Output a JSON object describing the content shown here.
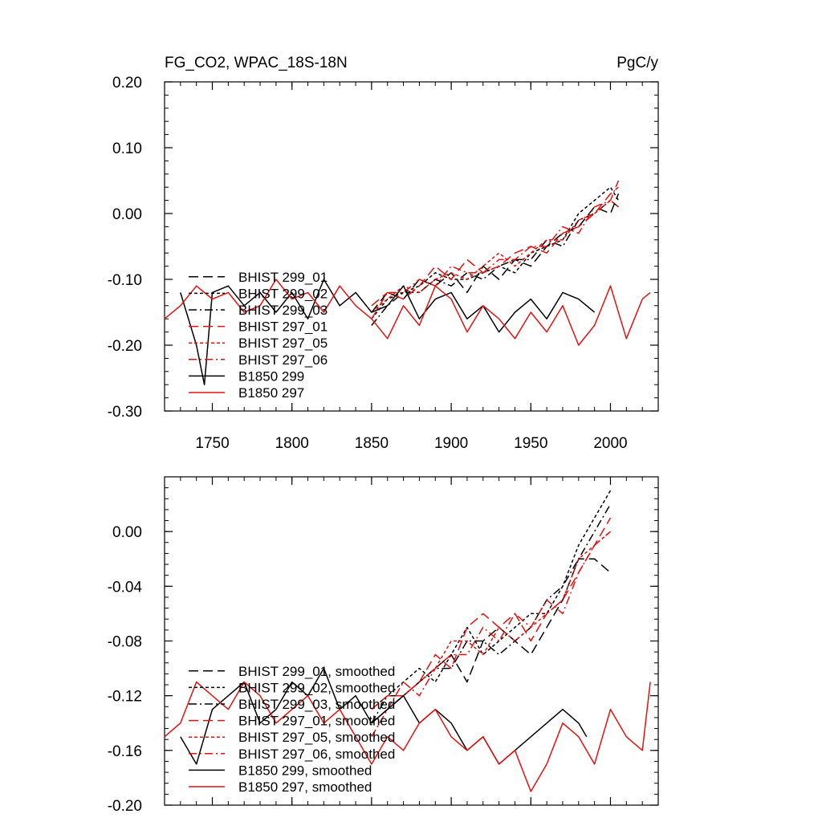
{
  "chart_data": [
    {
      "type": "line",
      "title": "FG_CO2, WPAC_18S-18N",
      "units": "PgC/y",
      "xlabel": "",
      "ylabel": "",
      "xlim": [
        1720,
        2030
      ],
      "ylim": [
        -0.3,
        0.2
      ],
      "xticks": [
        1750,
        1800,
        1850,
        1900,
        1950,
        2000
      ],
      "xtick_labels": [
        "1750",
        "1800",
        "1850",
        "1900",
        "1950",
        "2000"
      ],
      "yticks": [
        -0.3,
        -0.2,
        -0.1,
        0.0,
        0.1,
        0.2
      ],
      "ytick_labels": [
        "-0.30",
        "-0.20",
        "-0.10",
        "0.00",
        "0.10",
        "0.20"
      ],
      "grid": false,
      "legend_position": "bottom-left",
      "series": [
        {
          "name": "BHIST 299_01",
          "color": "#000000",
          "dash": "long-dash",
          "x": [
            1850,
            1860,
            1870,
            1880,
            1890,
            1900,
            1910,
            1920,
            1930,
            1940,
            1950,
            1960,
            1970,
            1980,
            1990,
            2000,
            2005
          ],
          "y": [
            -0.15,
            -0.12,
            -0.13,
            -0.1,
            -0.11,
            -0.09,
            -0.12,
            -0.08,
            -0.1,
            -0.07,
            -0.08,
            -0.05,
            -0.03,
            -0.02,
            0.01,
            0.0,
            0.03
          ]
        },
        {
          "name": "BHIST 299_02",
          "color": "#000000",
          "dash": "short-dash",
          "x": [
            1850,
            1860,
            1870,
            1880,
            1890,
            1900,
            1910,
            1920,
            1930,
            1940,
            1950,
            1960,
            1970,
            1980,
            1990,
            2000,
            2005
          ],
          "y": [
            -0.16,
            -0.13,
            -0.12,
            -0.11,
            -0.09,
            -0.1,
            -0.1,
            -0.09,
            -0.08,
            -0.09,
            -0.06,
            -0.05,
            -0.04,
            0.0,
            0.02,
            0.04,
            0.02
          ]
        },
        {
          "name": "BHIST 299_03",
          "color": "#000000",
          "dash": "dash-dot",
          "x": [
            1850,
            1860,
            1870,
            1880,
            1890,
            1900,
            1910,
            1920,
            1930,
            1940,
            1950,
            1960,
            1970,
            1980,
            1990,
            2000,
            2005
          ],
          "y": [
            -0.17,
            -0.14,
            -0.12,
            -0.12,
            -0.1,
            -0.11,
            -0.09,
            -0.1,
            -0.08,
            -0.07,
            -0.07,
            -0.04,
            -0.05,
            -0.01,
            0.0,
            0.02,
            0.01
          ]
        },
        {
          "name": "BHIST 297_01",
          "color": "#e8100f",
          "dash": "long-dash",
          "x": [
            1850,
            1860,
            1870,
            1880,
            1890,
            1900,
            1910,
            1920,
            1930,
            1940,
            1950,
            1960,
            1970,
            1980,
            1990,
            2000,
            2005
          ],
          "y": [
            -0.14,
            -0.12,
            -0.13,
            -0.11,
            -0.08,
            -0.1,
            -0.07,
            -0.09,
            -0.08,
            -0.06,
            -0.05,
            -0.06,
            -0.03,
            -0.02,
            0.0,
            0.03,
            0.04
          ]
        },
        {
          "name": "BHIST 297_05",
          "color": "#e8100f",
          "dash": "short-dash",
          "x": [
            1850,
            1860,
            1870,
            1880,
            1890,
            1900,
            1910,
            1920,
            1930,
            1940,
            1950,
            1960,
            1970,
            1980,
            1990,
            2000,
            2005
          ],
          "y": [
            -0.15,
            -0.13,
            -0.11,
            -0.12,
            -0.1,
            -0.09,
            -0.1,
            -0.08,
            -0.06,
            -0.08,
            -0.06,
            -0.04,
            -0.04,
            -0.01,
            0.0,
            0.02,
            0.01
          ]
        },
        {
          "name": "BHIST 297_06",
          "color": "#e8100f",
          "dash": "dash-dot",
          "x": [
            1850,
            1860,
            1870,
            1880,
            1890,
            1900,
            1910,
            1920,
            1930,
            1940,
            1950,
            1960,
            1970,
            1980,
            1990,
            2000,
            2005
          ],
          "y": [
            -0.16,
            -0.12,
            -0.12,
            -0.1,
            -0.11,
            -0.08,
            -0.09,
            -0.09,
            -0.07,
            -0.07,
            -0.05,
            -0.05,
            -0.02,
            -0.03,
            0.01,
            0.02,
            0.05
          ]
        },
        {
          "name": "B1850 299",
          "color": "#000000",
          "dash": "solid",
          "x": [
            1730,
            1740,
            1745,
            1750,
            1760,
            1770,
            1780,
            1790,
            1800,
            1810,
            1820,
            1830,
            1840,
            1850,
            1860,
            1870,
            1880,
            1890,
            1900,
            1910,
            1920,
            1930,
            1940,
            1950,
            1960,
            1970,
            1980,
            1990
          ],
          "y": [
            -0.12,
            -0.2,
            -0.26,
            -0.12,
            -0.11,
            -0.14,
            -0.12,
            -0.15,
            -0.12,
            -0.16,
            -0.1,
            -0.14,
            -0.12,
            -0.15,
            -0.14,
            -0.11,
            -0.16,
            -0.13,
            -0.12,
            -0.16,
            -0.14,
            -0.18,
            -0.15,
            -0.13,
            -0.16,
            -0.12,
            -0.13,
            -0.15
          ]
        },
        {
          "name": "B1850 297",
          "color": "#e8100f",
          "dash": "solid",
          "x": [
            1720,
            1730,
            1740,
            1750,
            1760,
            1770,
            1780,
            1790,
            1800,
            1810,
            1820,
            1830,
            1840,
            1850,
            1860,
            1870,
            1880,
            1890,
            1900,
            1910,
            1920,
            1930,
            1940,
            1950,
            1960,
            1970,
            1980,
            1990,
            2000,
            2010,
            2020,
            2025
          ],
          "y": [
            -0.16,
            -0.14,
            -0.11,
            -0.13,
            -0.12,
            -0.15,
            -0.14,
            -0.1,
            -0.13,
            -0.12,
            -0.15,
            -0.11,
            -0.14,
            -0.16,
            -0.19,
            -0.14,
            -0.17,
            -0.11,
            -0.13,
            -0.18,
            -0.14,
            -0.16,
            -0.19,
            -0.15,
            -0.18,
            -0.14,
            -0.2,
            -0.17,
            -0.11,
            -0.19,
            -0.13,
            -0.12
          ]
        }
      ]
    },
    {
      "type": "line",
      "title": "",
      "xlabel": "",
      "ylabel": "",
      "xlim": [
        1720,
        2030
      ],
      "ylim": [
        -0.2,
        0.04
      ],
      "yticks": [
        -0.2,
        -0.16,
        -0.12,
        -0.08,
        -0.04,
        0.0
      ],
      "ytick_labels": [
        "-0.20",
        "-0.16",
        "-0.12",
        "-0.08",
        "-0.04",
        "0.00"
      ],
      "grid": false,
      "legend_position": "bottom-left",
      "series": [
        {
          "name": "BHIST 299_01, smoothed",
          "color": "#000000",
          "dash": "long-dash",
          "x": [
            1850,
            1860,
            1870,
            1880,
            1890,
            1900,
            1910,
            1920,
            1930,
            1940,
            1950,
            1960,
            1970,
            1980,
            1990,
            2000
          ],
          "y": [
            -0.14,
            -0.13,
            -0.12,
            -0.11,
            -0.1,
            -0.09,
            -0.11,
            -0.08,
            -0.07,
            -0.08,
            -0.09,
            -0.07,
            -0.05,
            -0.02,
            -0.02,
            -0.03
          ]
        },
        {
          "name": "BHIST 299_02, smoothed",
          "color": "#000000",
          "dash": "short-dash",
          "x": [
            1850,
            1860,
            1870,
            1880,
            1890,
            1900,
            1910,
            1920,
            1930,
            1940,
            1950,
            1960,
            1970,
            1980,
            1990,
            2000
          ],
          "y": [
            -0.13,
            -0.12,
            -0.11,
            -0.1,
            -0.11,
            -0.09,
            -0.07,
            -0.09,
            -0.08,
            -0.07,
            -0.06,
            -0.06,
            -0.04,
            -0.01,
            0.01,
            0.03
          ]
        },
        {
          "name": "BHIST 299_03, smoothed",
          "color": "#000000",
          "dash": "dash-dot",
          "x": [
            1850,
            1860,
            1870,
            1880,
            1890,
            1900,
            1910,
            1920,
            1930,
            1940,
            1950,
            1960,
            1970,
            1980,
            1990,
            2000
          ],
          "y": [
            -0.14,
            -0.12,
            -0.12,
            -0.11,
            -0.1,
            -0.1,
            -0.08,
            -0.08,
            -0.09,
            -0.08,
            -0.07,
            -0.05,
            -0.04,
            -0.02,
            0.0,
            0.02
          ]
        },
        {
          "name": "BHIST 297_01, smoothed",
          "color": "#e8100f",
          "dash": "long-dash",
          "x": [
            1850,
            1860,
            1870,
            1880,
            1890,
            1900,
            1910,
            1920,
            1930,
            1940,
            1950,
            1960,
            1970,
            1980,
            1990,
            2000
          ],
          "y": [
            -0.13,
            -0.12,
            -0.12,
            -0.11,
            -0.09,
            -0.1,
            -0.07,
            -0.06,
            -0.07,
            -0.06,
            -0.08,
            -0.06,
            -0.05,
            -0.03,
            -0.01,
            0.01
          ]
        },
        {
          "name": "BHIST 297_05, smoothed",
          "color": "#e8100f",
          "dash": "short-dash",
          "x": [
            1850,
            1860,
            1870,
            1880,
            1890,
            1900,
            1910,
            1920,
            1930,
            1940,
            1950,
            1960,
            1970,
            1980,
            1990,
            2000
          ],
          "y": [
            -0.14,
            -0.13,
            -0.12,
            -0.11,
            -0.1,
            -0.08,
            -0.08,
            -0.09,
            -0.07,
            -0.08,
            -0.07,
            -0.06,
            -0.05,
            -0.02,
            -0.01,
            0.0
          ]
        },
        {
          "name": "BHIST 297_06, smoothed",
          "color": "#e8100f",
          "dash": "dash-dot",
          "x": [
            1850,
            1860,
            1870,
            1880,
            1890,
            1900,
            1910,
            1920,
            1930,
            1940,
            1950,
            1960,
            1970,
            1980,
            1990,
            2000
          ],
          "y": [
            -0.15,
            -0.13,
            -0.11,
            -0.12,
            -0.1,
            -0.09,
            -0.09,
            -0.07,
            -0.08,
            -0.06,
            -0.07,
            -0.05,
            -0.06,
            -0.03,
            -0.01,
            0.0
          ]
        },
        {
          "name": "B1850 299, smoothed",
          "color": "#000000",
          "dash": "solid",
          "x": [
            1730,
            1740,
            1750,
            1760,
            1770,
            1780,
            1790,
            1800,
            1810,
            1820,
            1830,
            1840,
            1850,
            1860,
            1870,
            1880,
            1890,
            1900,
            1910,
            1920,
            1930,
            1940,
            1950,
            1960,
            1970,
            1980,
            1985
          ],
          "y": [
            -0.15,
            -0.17,
            -0.13,
            -0.12,
            -0.11,
            -0.14,
            -0.13,
            -0.11,
            -0.12,
            -0.1,
            -0.13,
            -0.12,
            -0.14,
            -0.13,
            -0.12,
            -0.14,
            -0.13,
            -0.14,
            -0.16,
            -0.15,
            -0.17,
            -0.16,
            -0.15,
            -0.14,
            -0.13,
            -0.14,
            -0.15
          ]
        },
        {
          "name": "B1850 297, smoothed",
          "color": "#e8100f",
          "dash": "solid",
          "x": [
            1720,
            1730,
            1740,
            1750,
            1760,
            1770,
            1780,
            1790,
            1800,
            1810,
            1820,
            1830,
            1840,
            1850,
            1860,
            1870,
            1880,
            1890,
            1900,
            1910,
            1920,
            1930,
            1940,
            1950,
            1960,
            1970,
            1980,
            1990,
            2000,
            2010,
            2020,
            2025
          ],
          "y": [
            -0.15,
            -0.14,
            -0.11,
            -0.12,
            -0.13,
            -0.11,
            -0.12,
            -0.14,
            -0.13,
            -0.12,
            -0.14,
            -0.13,
            -0.15,
            -0.17,
            -0.15,
            -0.16,
            -0.14,
            -0.13,
            -0.15,
            -0.16,
            -0.15,
            -0.17,
            -0.16,
            -0.19,
            -0.17,
            -0.14,
            -0.15,
            -0.17,
            -0.13,
            -0.15,
            -0.16,
            -0.11
          ]
        }
      ]
    }
  ]
}
